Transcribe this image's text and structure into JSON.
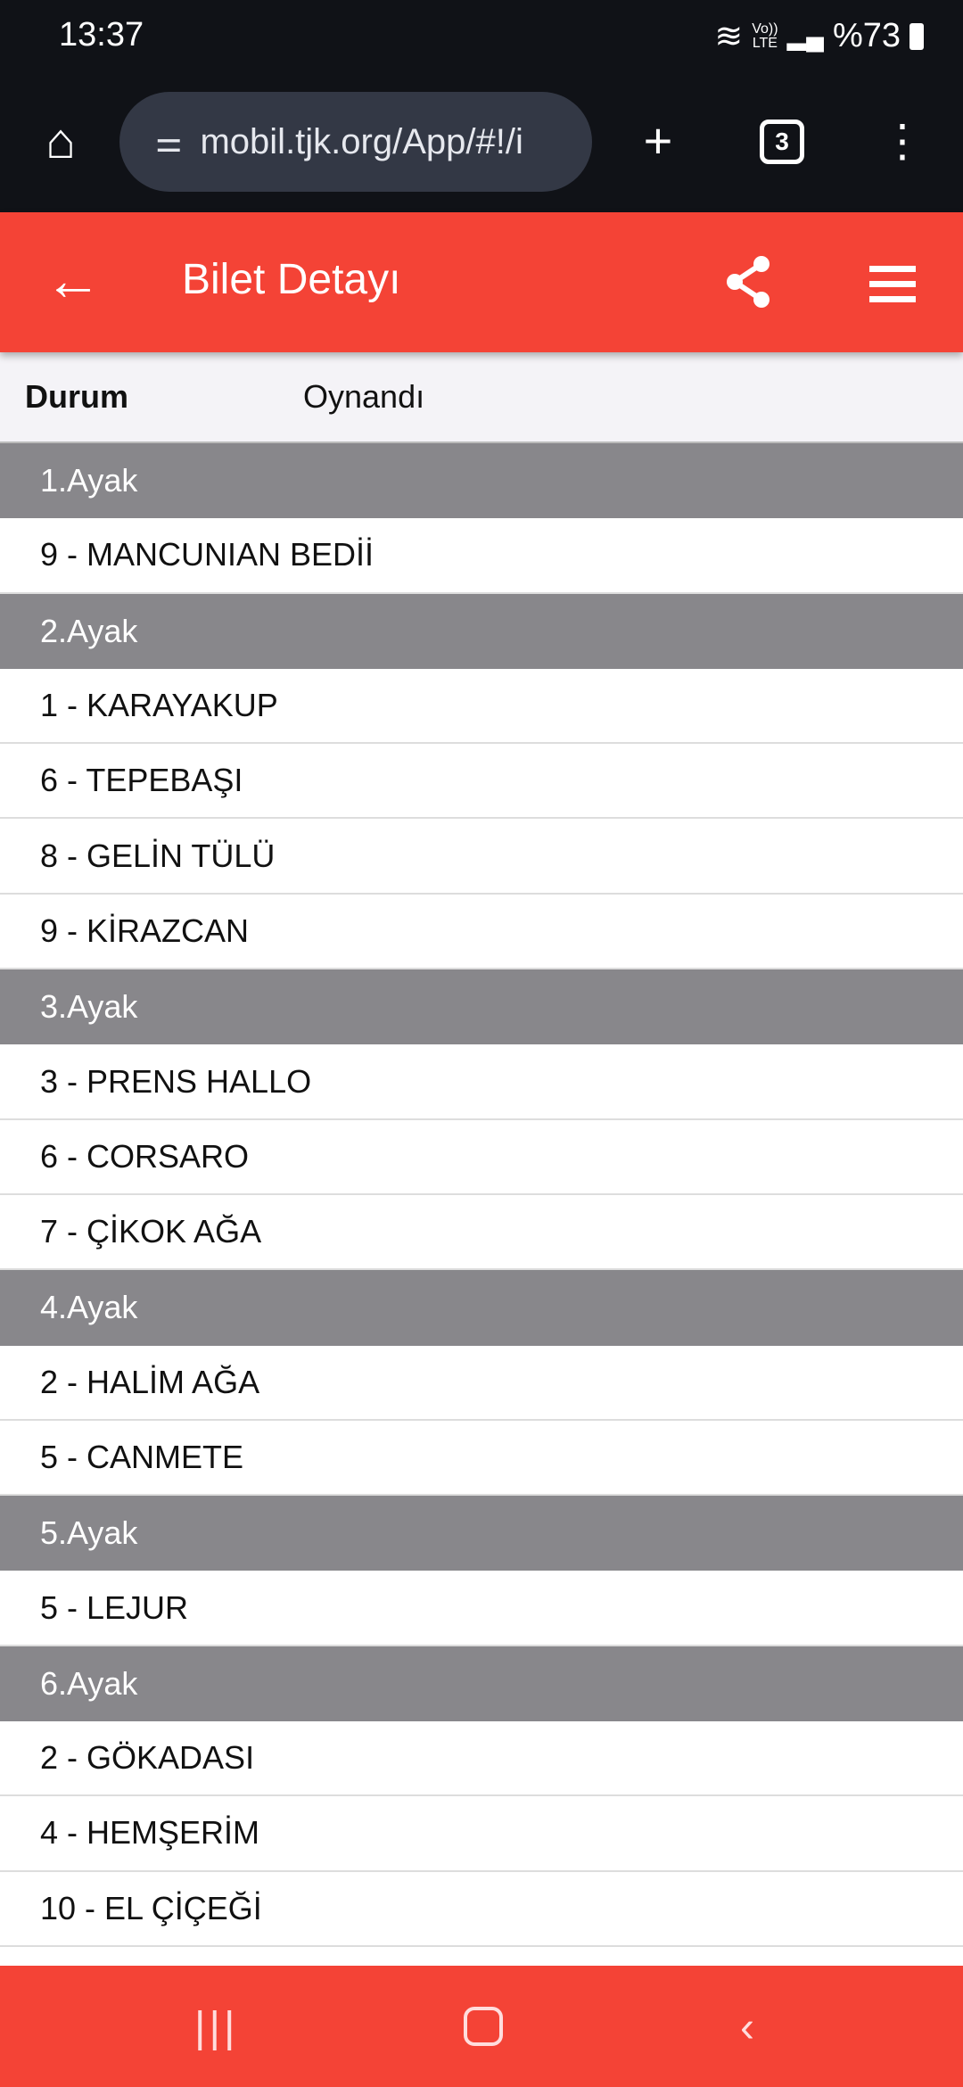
{
  "status_bar": {
    "time": "13:37",
    "network": "VoLTE",
    "battery": "%73"
  },
  "browser": {
    "url": "mobil.tjk.org/App/#!/i",
    "tab_count": "3"
  },
  "app_bar": {
    "title": "Bilet Detayı"
  },
  "durum": {
    "label": "Durum",
    "value": "Oynandı"
  },
  "legs": [
    {
      "title": "1.Ayak",
      "horses": [
        "9 - MANCUNIAN BEDİİ"
      ]
    },
    {
      "title": "2.Ayak",
      "horses": [
        "1 - KARAYAKUP",
        "6 - TEPEBAŞI",
        "8 - GELİN TÜLÜ",
        "9 - KİRAZCAN"
      ]
    },
    {
      "title": "3.Ayak",
      "horses": [
        "3 - PRENS HALLO",
        "6 - CORSARO",
        "7 - ÇİKOK AĞA"
      ]
    },
    {
      "title": "4.Ayak",
      "horses": [
        "2 - HALİM AĞA",
        "5 - CANMETE"
      ]
    },
    {
      "title": "5.Ayak",
      "horses": [
        "5 - LEJUR"
      ]
    },
    {
      "title": "6.Ayak",
      "horses": [
        "2 - GÖKADASI",
        "4 - HEMŞERİM",
        "10 - EL ÇİÇEĞİ"
      ]
    }
  ],
  "colors": {
    "accent": "#f44336",
    "leg_header": "#88878b"
  }
}
